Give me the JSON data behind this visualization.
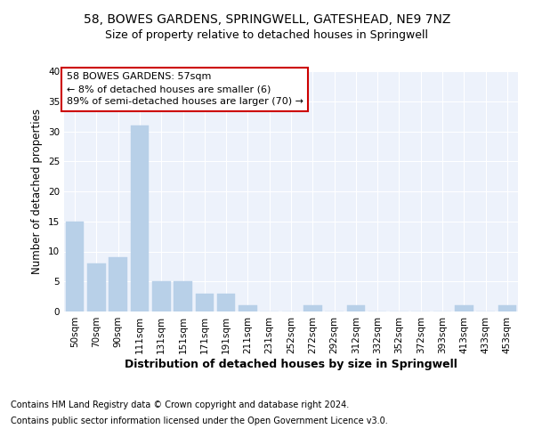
{
  "title": "58, BOWES GARDENS, SPRINGWELL, GATESHEAD, NE9 7NZ",
  "subtitle": "Size of property relative to detached houses in Springwell",
  "xlabel": "Distribution of detached houses by size in Springwell",
  "ylabel": "Number of detached properties",
  "categories": [
    "50sqm",
    "70sqm",
    "90sqm",
    "111sqm",
    "131sqm",
    "151sqm",
    "171sqm",
    "191sqm",
    "211sqm",
    "231sqm",
    "252sqm",
    "272sqm",
    "292sqm",
    "312sqm",
    "332sqm",
    "352sqm",
    "372sqm",
    "393sqm",
    "413sqm",
    "433sqm",
    "453sqm"
  ],
  "values": [
    15,
    8,
    9,
    31,
    5,
    5,
    3,
    3,
    1,
    0,
    0,
    1,
    0,
    1,
    0,
    0,
    0,
    0,
    1,
    0,
    1
  ],
  "bar_color": "#b8d0e8",
  "bar_edgecolor": "#b8d0e8",
  "annotation_box_color": "#cc0000",
  "annotation_line1": "58 BOWES GARDENS: 57sqm",
  "annotation_line2": "← 8% of detached houses are smaller (6)",
  "annotation_line3": "89% of semi-detached houses are larger (70) →",
  "ylim": [
    0,
    40
  ],
  "yticks": [
    0,
    5,
    10,
    15,
    20,
    25,
    30,
    35,
    40
  ],
  "background_color": "#edf2fb",
  "grid_color": "#ffffff",
  "footer_line1": "Contains HM Land Registry data © Crown copyright and database right 2024.",
  "footer_line2": "Contains public sector information licensed under the Open Government Licence v3.0.",
  "title_fontsize": 10,
  "subtitle_fontsize": 9,
  "axis_label_fontsize": 8.5,
  "tick_fontsize": 7.5,
  "annotation_fontsize": 8,
  "footer_fontsize": 7
}
